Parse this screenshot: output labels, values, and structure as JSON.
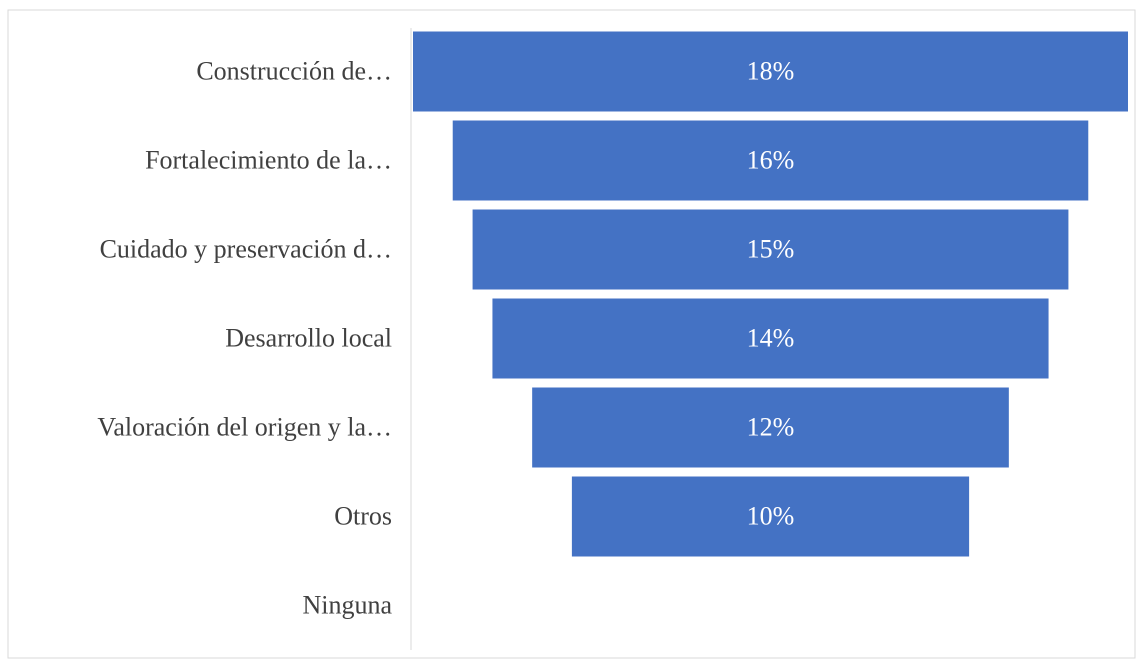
{
  "chart_data": {
    "type": "funnel",
    "categories": [
      "Construcción de…",
      "Fortalecimiento de la…",
      "Cuidado y preservación d…",
      "Desarrollo local",
      "Valoración del origen y la…",
      "Otros",
      "Ninguna"
    ],
    "values": [
      18,
      16,
      15,
      14,
      12,
      10,
      0
    ],
    "value_labels": [
      "18%",
      "16%",
      "15%",
      "14%",
      "12%",
      "10%",
      null
    ],
    "color": "#4472c4"
  }
}
